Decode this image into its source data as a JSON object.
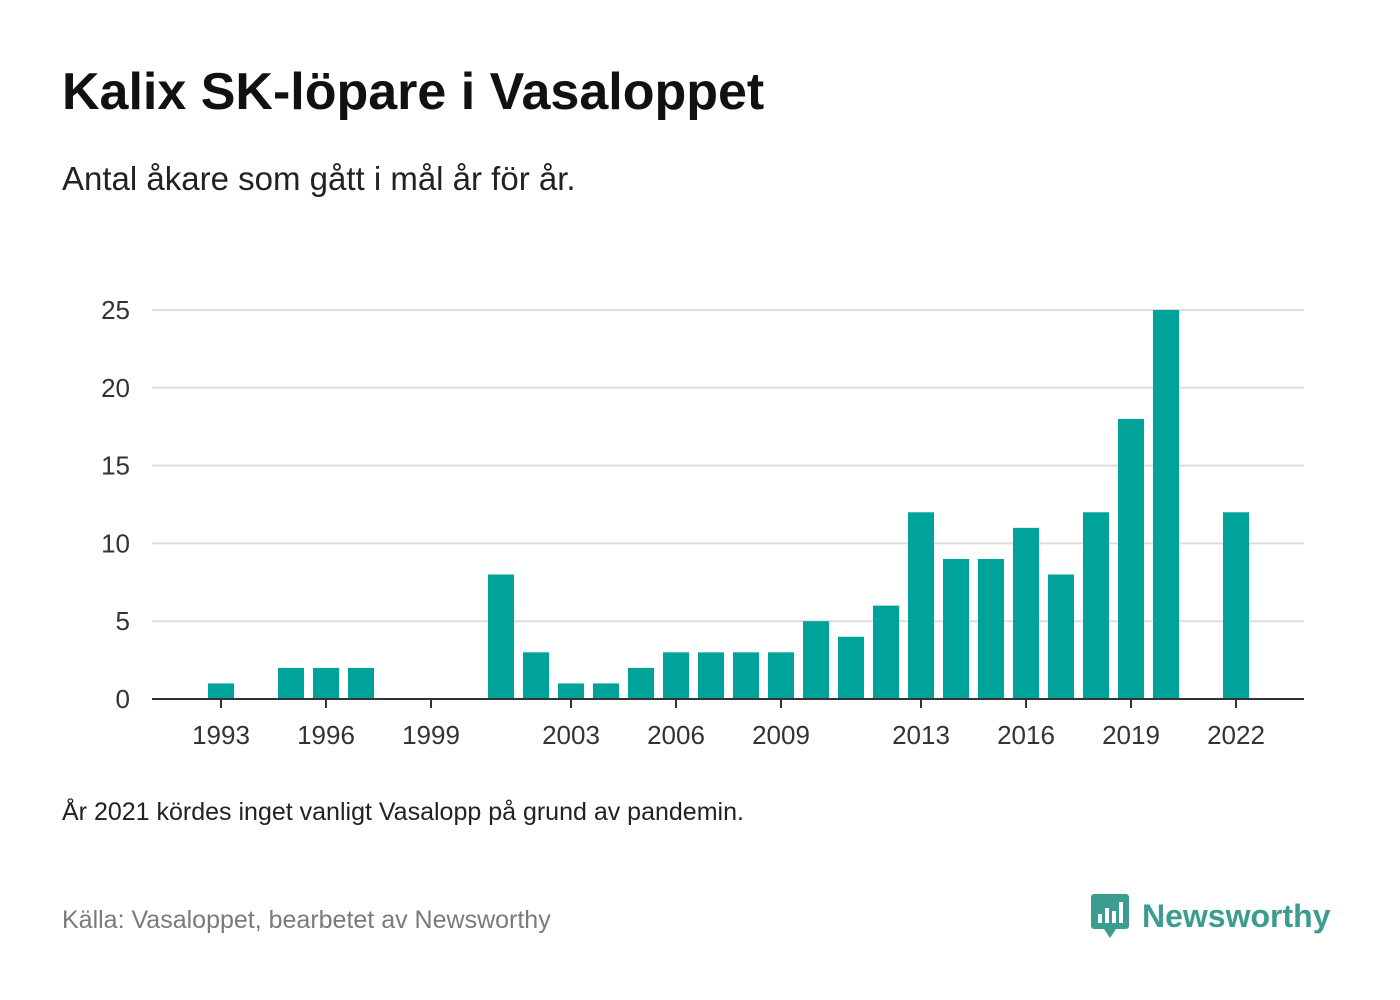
{
  "header": {
    "title": "Kalix SK-löpare i Vasaloppet",
    "subtitle": "Antal åkare som gått i mål år för år."
  },
  "footer": {
    "note": "År 2021 kördes inget vanligt Vasalopp på grund av pandemin.",
    "source": "Källa: Vasaloppet, bearbetet av Newsworthy",
    "logo_text": "Newsworthy",
    "logo_icon": "bar-chart-badge-icon"
  },
  "colors": {
    "bar": "#00a39a",
    "grid": "#dddddd",
    "axis": "#333333",
    "logo": "#3a9d8f"
  },
  "chart_data": {
    "type": "bar",
    "title": "Kalix SK-löpare i Vasaloppet",
    "subtitle": "Antal åkare som gått i mål år för år.",
    "xlabel": "",
    "ylabel": "",
    "categories": [
      1991,
      1992,
      1993,
      1994,
      1995,
      1996,
      1997,
      1998,
      1999,
      2000,
      2001,
      2002,
      2003,
      2004,
      2005,
      2006,
      2007,
      2008,
      2009,
      2010,
      2011,
      2012,
      2013,
      2014,
      2015,
      2016,
      2017,
      2018,
      2019,
      2020,
      2021,
      2022
    ],
    "values": [
      0,
      0,
      1,
      0,
      2,
      2,
      2,
      0,
      0,
      0,
      8,
      3,
      1,
      1,
      2,
      3,
      3,
      3,
      3,
      5,
      4,
      6,
      12,
      9,
      9,
      11,
      8,
      12,
      18,
      25,
      0,
      12
    ],
    "ylim": [
      0,
      25
    ],
    "yticks": [
      0,
      5,
      10,
      15,
      20,
      25
    ],
    "xticks": [
      1993,
      1996,
      1999,
      2003,
      2006,
      2009,
      2013,
      2016,
      2019,
      2022
    ],
    "grid": true,
    "legend": "none"
  }
}
